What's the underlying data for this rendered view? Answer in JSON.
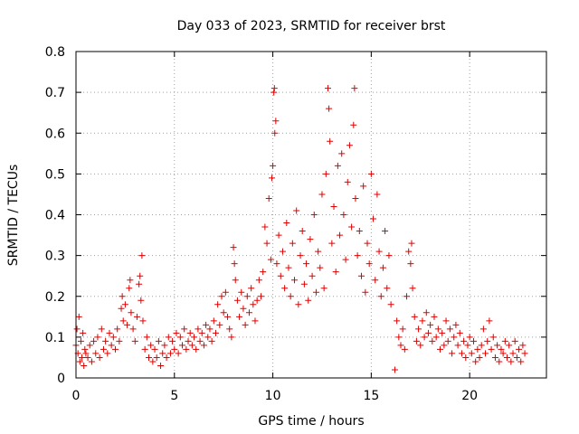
{
  "chart_data": {
    "type": "scatter",
    "title": "Day 033 of 2023, SRMTID for receiver brst",
    "xlabel": "GPS time / hours",
    "ylabel": "SRMTID / TECUs",
    "xlim": [
      0,
      23.9
    ],
    "ylim": [
      0,
      0.8
    ],
    "xticks": [
      0,
      5,
      10,
      15,
      20
    ],
    "yticks": [
      0,
      0.1,
      0.2,
      0.3,
      0.4,
      0.5,
      0.6,
      0.7,
      0.8
    ],
    "xtick_labels": [
      "0",
      "5",
      "10",
      "15",
      "20"
    ],
    "ytick_labels": [
      "0",
      "0.1",
      "0.2",
      "0.3",
      "0.4",
      "0.5",
      "0.6",
      "0.7",
      "0.8"
    ],
    "grid": true,
    "marker": "+",
    "series": [
      {
        "name": "SRMTID",
        "color": "#e00000",
        "points": [
          [
            0.0,
            0.08
          ],
          [
            0.05,
            0.12
          ],
          [
            0.1,
            0.06
          ],
          [
            0.15,
            0.15
          ],
          [
            0.2,
            0.04
          ],
          [
            0.25,
            0.09
          ],
          [
            0.3,
            0.05
          ],
          [
            0.35,
            0.11
          ],
          [
            0.4,
            0.03
          ],
          [
            0.45,
            0.07
          ],
          [
            0.5,
            0.06
          ],
          [
            0.6,
            0.05
          ],
          [
            0.7,
            0.08
          ],
          [
            0.8,
            0.04
          ],
          [
            0.9,
            0.09
          ],
          [
            1.0,
            0.06
          ],
          [
            1.1,
            0.1
          ],
          [
            1.2,
            0.05
          ],
          [
            1.3,
            0.12
          ],
          [
            1.4,
            0.07
          ],
          [
            1.5,
            0.09
          ],
          [
            1.6,
            0.06
          ],
          [
            1.7,
            0.11
          ],
          [
            1.8,
            0.08
          ],
          [
            1.9,
            0.1
          ],
          [
            2.0,
            0.07
          ],
          [
            2.1,
            0.12
          ],
          [
            2.2,
            0.09
          ],
          [
            2.3,
            0.17
          ],
          [
            2.35,
            0.2
          ],
          [
            2.4,
            0.14
          ],
          [
            2.5,
            0.18
          ],
          [
            2.6,
            0.13
          ],
          [
            2.7,
            0.22
          ],
          [
            2.75,
            0.24
          ],
          [
            2.8,
            0.16
          ],
          [
            2.9,
            0.12
          ],
          [
            3.0,
            0.09
          ],
          [
            3.1,
            0.15
          ],
          [
            3.2,
            0.23
          ],
          [
            3.25,
            0.25
          ],
          [
            3.3,
            0.19
          ],
          [
            3.35,
            0.3
          ],
          [
            3.4,
            0.14
          ],
          [
            3.5,
            0.07
          ],
          [
            3.6,
            0.1
          ],
          [
            3.7,
            0.05
          ],
          [
            3.8,
            0.08
          ],
          [
            3.9,
            0.04
          ],
          [
            4.0,
            0.07
          ],
          [
            4.1,
            0.05
          ],
          [
            4.2,
            0.09
          ],
          [
            4.3,
            0.03
          ],
          [
            4.4,
            0.06
          ],
          [
            4.5,
            0.08
          ],
          [
            4.6,
            0.05
          ],
          [
            4.7,
            0.1
          ],
          [
            4.8,
            0.06
          ],
          [
            4.9,
            0.09
          ],
          [
            5.0,
            0.07
          ],
          [
            5.1,
            0.11
          ],
          [
            5.2,
            0.06
          ],
          [
            5.3,
            0.1
          ],
          [
            5.4,
            0.08
          ],
          [
            5.5,
            0.12
          ],
          [
            5.6,
            0.07
          ],
          [
            5.7,
            0.09
          ],
          [
            5.8,
            0.11
          ],
          [
            5.9,
            0.08
          ],
          [
            6.0,
            0.1
          ],
          [
            6.1,
            0.07
          ],
          [
            6.2,
            0.12
          ],
          [
            6.3,
            0.09
          ],
          [
            6.4,
            0.11
          ],
          [
            6.5,
            0.08
          ],
          [
            6.6,
            0.13
          ],
          [
            6.7,
            0.1
          ],
          [
            6.8,
            0.12
          ],
          [
            6.9,
            0.09
          ],
          [
            7.0,
            0.14
          ],
          [
            7.1,
            0.11
          ],
          [
            7.2,
            0.18
          ],
          [
            7.3,
            0.13
          ],
          [
            7.4,
            0.2
          ],
          [
            7.5,
            0.16
          ],
          [
            7.6,
            0.21
          ],
          [
            7.7,
            0.15
          ],
          [
            7.8,
            0.12
          ],
          [
            7.9,
            0.1
          ],
          [
            8.0,
            0.32
          ],
          [
            8.05,
            0.28
          ],
          [
            8.1,
            0.24
          ],
          [
            8.2,
            0.19
          ],
          [
            8.3,
            0.15
          ],
          [
            8.4,
            0.21
          ],
          [
            8.5,
            0.17
          ],
          [
            8.6,
            0.13
          ],
          [
            8.7,
            0.2
          ],
          [
            8.8,
            0.16
          ],
          [
            8.9,
            0.22
          ],
          [
            9.0,
            0.18
          ],
          [
            9.1,
            0.14
          ],
          [
            9.2,
            0.19
          ],
          [
            9.3,
            0.24
          ],
          [
            9.4,
            0.2
          ],
          [
            9.5,
            0.26
          ],
          [
            9.6,
            0.37
          ],
          [
            9.7,
            0.33
          ],
          [
            9.8,
            0.44
          ],
          [
            9.9,
            0.29
          ],
          [
            9.95,
            0.49
          ],
          [
            10.0,
            0.52
          ],
          [
            10.05,
            0.7
          ],
          [
            10.08,
            0.71
          ],
          [
            10.1,
            0.6
          ],
          [
            10.15,
            0.63
          ],
          [
            10.2,
            0.28
          ],
          [
            10.3,
            0.35
          ],
          [
            10.4,
            0.25
          ],
          [
            10.5,
            0.31
          ],
          [
            10.6,
            0.22
          ],
          [
            10.7,
            0.38
          ],
          [
            10.8,
            0.27
          ],
          [
            10.9,
            0.2
          ],
          [
            11.0,
            0.33
          ],
          [
            11.1,
            0.24
          ],
          [
            11.2,
            0.41
          ],
          [
            11.3,
            0.18
          ],
          [
            11.4,
            0.3
          ],
          [
            11.5,
            0.36
          ],
          [
            11.6,
            0.23
          ],
          [
            11.7,
            0.28
          ],
          [
            11.8,
            0.19
          ],
          [
            11.9,
            0.34
          ],
          [
            12.0,
            0.25
          ],
          [
            12.1,
            0.4
          ],
          [
            12.2,
            0.21
          ],
          [
            12.3,
            0.31
          ],
          [
            12.4,
            0.27
          ],
          [
            12.5,
            0.45
          ],
          [
            12.6,
            0.22
          ],
          [
            12.7,
            0.5
          ],
          [
            12.8,
            0.71
          ],
          [
            12.85,
            0.66
          ],
          [
            12.9,
            0.58
          ],
          [
            13.0,
            0.33
          ],
          [
            13.1,
            0.42
          ],
          [
            13.2,
            0.26
          ],
          [
            13.3,
            0.52
          ],
          [
            13.4,
            0.35
          ],
          [
            13.5,
            0.55
          ],
          [
            13.6,
            0.4
          ],
          [
            13.7,
            0.29
          ],
          [
            13.8,
            0.48
          ],
          [
            13.9,
            0.57
          ],
          [
            14.0,
            0.37
          ],
          [
            14.1,
            0.62
          ],
          [
            14.15,
            0.71
          ],
          [
            14.2,
            0.44
          ],
          [
            14.3,
            0.3
          ],
          [
            14.4,
            0.36
          ],
          [
            14.5,
            0.25
          ],
          [
            14.6,
            0.47
          ],
          [
            14.7,
            0.21
          ],
          [
            14.8,
            0.33
          ],
          [
            14.9,
            0.28
          ],
          [
            15.0,
            0.5
          ],
          [
            15.1,
            0.39
          ],
          [
            15.2,
            0.24
          ],
          [
            15.3,
            0.45
          ],
          [
            15.4,
            0.31
          ],
          [
            15.5,
            0.2
          ],
          [
            15.6,
            0.27
          ],
          [
            15.7,
            0.36
          ],
          [
            15.8,
            0.22
          ],
          [
            15.9,
            0.3
          ],
          [
            16.0,
            0.18
          ],
          [
            16.2,
            0.02
          ],
          [
            16.3,
            0.14
          ],
          [
            16.4,
            0.1
          ],
          [
            16.5,
            0.08
          ],
          [
            16.6,
            0.12
          ],
          [
            16.7,
            0.07
          ],
          [
            16.8,
            0.2
          ],
          [
            16.9,
            0.31
          ],
          [
            17.0,
            0.28
          ],
          [
            17.05,
            0.33
          ],
          [
            17.1,
            0.22
          ],
          [
            17.2,
            0.15
          ],
          [
            17.3,
            0.09
          ],
          [
            17.4,
            0.12
          ],
          [
            17.5,
            0.08
          ],
          [
            17.6,
            0.14
          ],
          [
            17.7,
            0.1
          ],
          [
            17.8,
            0.16
          ],
          [
            17.9,
            0.11
          ],
          [
            18.0,
            0.13
          ],
          [
            18.1,
            0.09
          ],
          [
            18.2,
            0.15
          ],
          [
            18.3,
            0.1
          ],
          [
            18.4,
            0.12
          ],
          [
            18.5,
            0.07
          ],
          [
            18.6,
            0.11
          ],
          [
            18.7,
            0.08
          ],
          [
            18.8,
            0.14
          ],
          [
            18.9,
            0.09
          ],
          [
            19.0,
            0.12
          ],
          [
            19.1,
            0.06
          ],
          [
            19.2,
            0.1
          ],
          [
            19.3,
            0.13
          ],
          [
            19.4,
            0.08
          ],
          [
            19.5,
            0.11
          ],
          [
            19.6,
            0.06
          ],
          [
            19.7,
            0.09
          ],
          [
            19.8,
            0.05
          ],
          [
            19.9,
            0.08
          ],
          [
            20.0,
            0.1
          ],
          [
            20.1,
            0.06
          ],
          [
            20.2,
            0.09
          ],
          [
            20.3,
            0.04
          ],
          [
            20.4,
            0.07
          ],
          [
            20.5,
            0.05
          ],
          [
            20.6,
            0.08
          ],
          [
            20.7,
            0.12
          ],
          [
            20.8,
            0.06
          ],
          [
            20.9,
            0.09
          ],
          [
            21.0,
            0.14
          ],
          [
            21.1,
            0.07
          ],
          [
            21.2,
            0.1
          ],
          [
            21.3,
            0.05
          ],
          [
            21.4,
            0.08
          ],
          [
            21.5,
            0.04
          ],
          [
            21.6,
            0.07
          ],
          [
            21.7,
            0.06
          ],
          [
            21.8,
            0.09
          ],
          [
            21.9,
            0.05
          ],
          [
            22.0,
            0.08
          ],
          [
            22.1,
            0.04
          ],
          [
            22.2,
            0.06
          ],
          [
            22.3,
            0.09
          ],
          [
            22.4,
            0.05
          ],
          [
            22.5,
            0.07
          ],
          [
            22.6,
            0.04
          ],
          [
            22.7,
            0.08
          ],
          [
            22.8,
            0.06
          ]
        ]
      }
    ]
  }
}
